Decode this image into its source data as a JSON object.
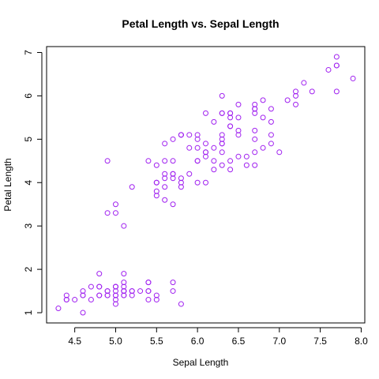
{
  "chart_data": {
    "type": "scatter",
    "title": "Petal Length vs. Sepal Length",
    "xlabel": "Sepal Length",
    "ylabel": "Petal Length",
    "xlim": [
      4.3,
      7.9
    ],
    "ylim": [
      1.0,
      6.9
    ],
    "xticks": [
      4.5,
      5.0,
      5.5,
      6.0,
      6.5,
      7.0,
      7.5,
      8.0
    ],
    "xtick_labels": [
      "4.5",
      "5.0",
      "5.5",
      "6.0",
      "6.5",
      "7.0",
      "7.5",
      "8.0"
    ],
    "yticks": [
      1,
      2,
      3,
      4,
      5,
      6,
      7
    ],
    "ytick_labels": [
      "1",
      "2",
      "3",
      "4",
      "5",
      "6",
      "7"
    ],
    "grid": false,
    "legend": "none",
    "marker_color": "#a020f0",
    "series": [
      {
        "x": [
          5.1,
          4.9,
          4.7,
          4.6,
          5.0,
          5.4,
          4.6,
          5.0,
          4.4,
          4.9,
          5.4,
          4.8,
          4.8,
          4.3,
          5.8,
          5.7,
          5.4,
          5.1,
          5.7,
          5.1,
          5.4,
          5.1,
          4.6,
          5.1,
          4.8,
          5.0,
          5.0,
          5.2,
          5.2,
          4.7,
          4.8,
          5.4,
          5.2,
          5.5,
          4.9,
          5.0,
          5.5,
          4.9,
          4.4,
          5.1,
          5.0,
          4.5,
          4.4,
          5.0,
          5.1,
          4.8,
          5.1,
          4.6,
          5.3,
          5.0,
          7.0,
          6.4,
          6.9,
          5.5,
          6.5,
          5.7,
          6.3,
          4.9,
          6.6,
          5.2,
          5.0,
          5.9,
          6.0,
          6.1,
          5.6,
          6.7,
          5.6,
          5.8,
          6.2,
          5.6,
          5.9,
          6.1,
          6.3,
          6.1,
          6.4,
          6.6,
          6.8,
          6.7,
          6.0,
          5.7,
          5.5,
          5.5,
          5.8,
          6.0,
          5.4,
          6.0,
          6.7,
          6.3,
          5.6,
          5.5,
          5.5,
          6.1,
          5.8,
          5.0,
          5.6,
          5.7,
          5.7,
          6.2,
          5.1,
          5.7,
          6.3,
          5.8,
          7.1,
          6.3,
          6.5,
          7.6,
          4.9,
          7.3,
          6.7,
          7.2,
          6.5,
          6.4,
          6.8,
          5.7,
          5.8,
          6.4,
          6.5,
          7.7,
          7.7,
          6.0,
          6.9,
          5.6,
          7.7,
          6.3,
          6.7,
          7.2,
          6.2,
          6.1,
          6.4,
          7.2,
          7.4,
          7.9,
          6.4,
          6.3,
          6.1,
          7.7,
          6.3,
          6.4,
          6.0,
          6.9,
          6.7,
          6.9,
          5.8,
          6.8,
          6.7,
          6.7,
          6.3,
          6.5,
          6.2,
          5.9
        ],
        "y": [
          1.4,
          1.4,
          1.3,
          1.5,
          1.4,
          1.7,
          1.4,
          1.5,
          1.4,
          1.5,
          1.5,
          1.6,
          1.4,
          1.1,
          1.2,
          1.5,
          1.3,
          1.4,
          1.7,
          1.5,
          1.7,
          1.5,
          1.0,
          1.7,
          1.9,
          1.6,
          1.6,
          1.5,
          1.4,
          1.6,
          1.6,
          1.5,
          1.5,
          1.4,
          1.5,
          1.2,
          1.3,
          1.4,
          1.3,
          1.5,
          1.3,
          1.3,
          1.3,
          1.6,
          1.9,
          1.4,
          1.6,
          1.4,
          1.5,
          1.4,
          4.7,
          4.5,
          4.9,
          4.0,
          4.6,
          4.5,
          4.7,
          3.3,
          4.6,
          3.9,
          3.5,
          4.2,
          4.0,
          4.7,
          3.6,
          4.4,
          4.5,
          4.1,
          4.5,
          3.9,
          4.8,
          4.0,
          4.9,
          4.7,
          4.3,
          4.4,
          4.8,
          5.0,
          4.5,
          3.5,
          3.8,
          3.7,
          3.9,
          5.1,
          4.5,
          4.5,
          4.7,
          4.4,
          4.1,
          4.0,
          4.4,
          4.6,
          4.0,
          3.3,
          4.2,
          4.2,
          4.2,
          4.3,
          3.0,
          4.1,
          6.0,
          5.1,
          5.9,
          5.6,
          5.8,
          6.6,
          4.5,
          6.3,
          5.8,
          6.1,
          5.1,
          5.3,
          5.5,
          5.0,
          5.1,
          5.3,
          5.5,
          6.7,
          6.9,
          5.0,
          5.7,
          4.9,
          6.7,
          4.9,
          5.7,
          6.0,
          4.8,
          4.9,
          5.6,
          5.8,
          6.1,
          6.4,
          5.6,
          5.1,
          5.6,
          6.1,
          5.6,
          5.5,
          4.8,
          5.4,
          5.6,
          5.1,
          5.1,
          5.9,
          5.7,
          5.2,
          5.0,
          5.2,
          5.4,
          5.1
        ]
      }
    ]
  }
}
